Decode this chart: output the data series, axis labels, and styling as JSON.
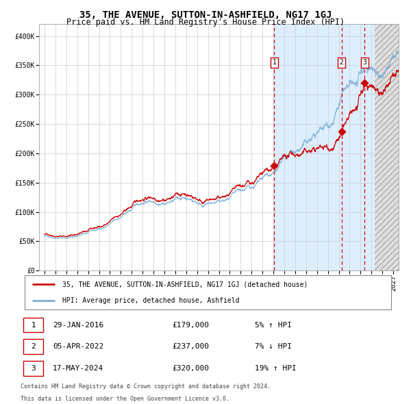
{
  "title": "35, THE AVENUE, SUTTON-IN-ASHFIELD, NG17 1GJ",
  "subtitle": "Price paid vs. HM Land Registry's House Price Index (HPI)",
  "legend_line1": "35, THE AVENUE, SUTTON-IN-ASHFIELD, NG17 1GJ (detached house)",
  "legend_line2": "HPI: Average price, detached house, Ashfield",
  "footer1": "Contains HM Land Registry data © Crown copyright and database right 2024.",
  "footer2": "This data is licensed under the Open Government Licence v3.0.",
  "table": [
    {
      "num": "1",
      "date": "29-JAN-2016",
      "price": "£179,000",
      "hpi": "5% ↑ HPI"
    },
    {
      "num": "2",
      "date": "05-APR-2022",
      "price": "£237,000",
      "hpi": "7% ↓ HPI"
    },
    {
      "num": "3",
      "date": "17-MAY-2024",
      "price": "£320,000",
      "hpi": "19% ↑ HPI"
    }
  ],
  "sale_dates_num": [
    2016.08,
    2022.26,
    2024.38
  ],
  "sale_prices": [
    179000,
    237000,
    320000
  ],
  "dashed_line_x": [
    2016.08,
    2022.26,
    2024.38
  ],
  "shade_start": 2016.08,
  "hatch_start": 2025.3,
  "hatch_end": 2027.5,
  "ylim": [
    0,
    420000
  ],
  "xlim_start": 1994.5,
  "xlim_end": 2027.5,
  "yticks": [
    0,
    50000,
    100000,
    150000,
    200000,
    250000,
    300000,
    350000,
    400000
  ],
  "ytick_labels": [
    "£0",
    "£50K",
    "£100K",
    "£150K",
    "£200K",
    "£250K",
    "£300K",
    "£350K",
    "£400K"
  ],
  "red_line_color": "#cc0000",
  "blue_line_color": "#7aaed6",
  "shade_color": "#ddeeff",
  "grid_color": "#cccccc",
  "background_color": "#ffffff",
  "title_fontsize": 10,
  "subtitle_fontsize": 8.5,
  "axis_fontsize": 7,
  "footer_fontsize": 6,
  "label_num_fontsize": 7
}
